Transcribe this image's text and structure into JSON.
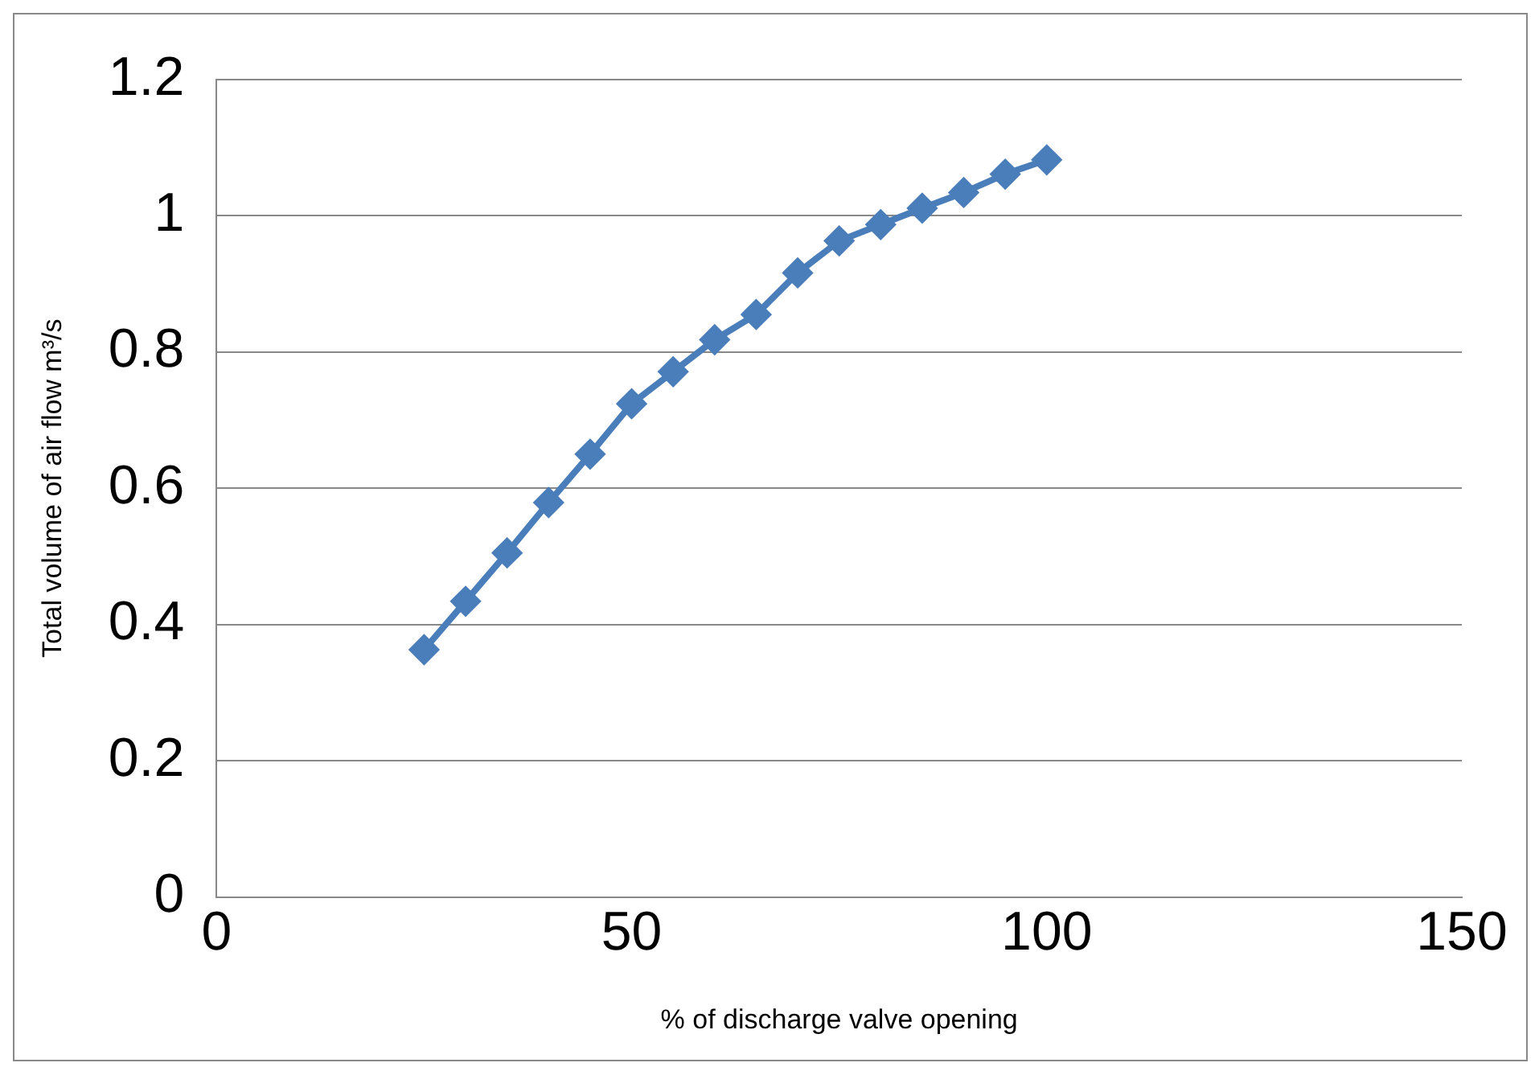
{
  "chart_data": {
    "type": "line",
    "xlabel": "% of discharge valve opening",
    "ylabel": "Total volume of air flow m³/s",
    "x": [
      25,
      30,
      35,
      40,
      45,
      50,
      55,
      60,
      65,
      70,
      75,
      80,
      85,
      90,
      95,
      100
    ],
    "series": [
      {
        "color": "#4a7ebb",
        "values": [
          0.363,
          0.434,
          0.505,
          0.579,
          0.65,
          0.724,
          0.771,
          0.818,
          0.855,
          0.916,
          0.963,
          0.987,
          1.011,
          1.034,
          1.061,
          1.082
        ]
      }
    ],
    "xlim": [
      0,
      150
    ],
    "xticks": [
      0,
      50,
      100,
      150
    ],
    "ylim": [
      0,
      1.2
    ],
    "yticks": [
      0,
      0.2,
      0.4,
      0.6,
      0.8,
      1,
      1.2
    ],
    "grid": "y",
    "legend": false,
    "marker": "diamond",
    "line_style": "solid"
  }
}
